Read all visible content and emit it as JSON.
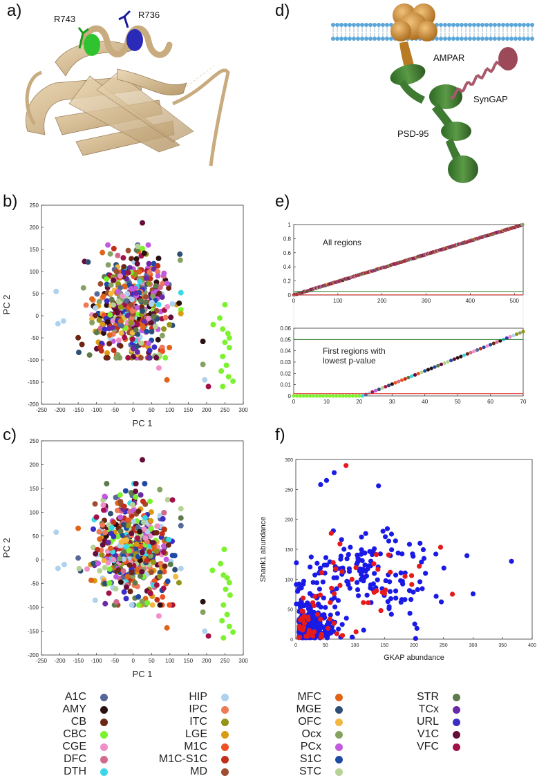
{
  "panels": {
    "a": {
      "label": "a)",
      "res1": "R743",
      "res2": "R736",
      "colors": {
        "ribbon": "#d8bf96",
        "res1": "#2fc42f",
        "res2": "#2a2ab8"
      }
    },
    "d": {
      "label": "d)",
      "ampar": "AMPAR",
      "syngap": "SynGAP",
      "psd95": "PSD-95",
      "colors": {
        "ampar": "#d1902e",
        "psd95": "#3e7a31",
        "syngap": "#9c4a5a",
        "membrane": "#5aa6d8"
      }
    },
    "b": {
      "label": "b)"
    },
    "c": {
      "label": "c)"
    },
    "e": {
      "label": "e)"
    },
    "f": {
      "label": "f)"
    }
  },
  "chart_data": [
    {
      "id": "b",
      "type": "scatter",
      "title": "",
      "xlabel": "PC 1",
      "ylabel": "PC 2",
      "xlim": [
        -250,
        300
      ],
      "ylim": [
        -200,
        250
      ],
      "xticks": [
        -250,
        -200,
        -150,
        -100,
        -50,
        0,
        50,
        100,
        150,
        200,
        250,
        300
      ],
      "yticks": [
        -200,
        -150,
        -100,
        -50,
        0,
        50,
        100,
        150,
        200,
        250
      ],
      "point_count": 520,
      "seed": 11,
      "cluster": {
        "x_mean": 0,
        "x_sd": 55,
        "y_mean": 20,
        "y_sd": 60
      },
      "cb_points": [
        [
          218,
          -20
        ],
        [
          236,
          -5
        ],
        [
          244,
          -30
        ],
        [
          258,
          -40
        ],
        [
          250,
          -60
        ],
        [
          262,
          -72
        ],
        [
          244,
          -92
        ],
        [
          254,
          -112
        ],
        [
          240,
          -125
        ],
        [
          260,
          -138
        ],
        [
          244,
          -160
        ],
        [
          272,
          -148
        ],
        [
          250,
          25
        ],
        [
          262,
          -50
        ]
      ],
      "outliers": [
        [
          25,
          210
        ],
        [
          92,
          -145
        ],
        [
          190,
          -58
        ],
        [
          190,
          -110
        ],
        [
          205,
          -160
        ],
        [
          195,
          -145
        ],
        [
          -210,
          55
        ],
        [
          -205,
          -18
        ],
        [
          -190,
          -12
        ],
        [
          70,
          -118
        ],
        [
          80,
          -80
        ]
      ]
    },
    {
      "id": "c",
      "type": "scatter",
      "title": "",
      "xlabel": "PC 1",
      "ylabel": "PC 2",
      "xlim": [
        -250,
        300
      ],
      "ylim": [
        -200,
        250
      ],
      "xticks": [
        -250,
        -200,
        -150,
        -100,
        -50,
        0,
        50,
        100,
        150,
        200,
        250,
        300
      ],
      "yticks": [
        -200,
        -150,
        -100,
        -50,
        0,
        50,
        100,
        150,
        200,
        250
      ],
      "point_count": 520,
      "seed": 29,
      "cluster": {
        "x_mean": 0,
        "x_sd": 55,
        "y_mean": 20,
        "y_sd": 60
      },
      "cb_points": [
        [
          216,
          -22
        ],
        [
          238,
          -8
        ],
        [
          246,
          -32
        ],
        [
          256,
          -38
        ],
        [
          252,
          -62
        ],
        [
          264,
          -74
        ],
        [
          246,
          -95
        ],
        [
          256,
          -115
        ],
        [
          242,
          -128
        ],
        [
          262,
          -140
        ],
        [
          246,
          -164
        ],
        [
          272,
          -152
        ],
        [
          248,
          22
        ],
        [
          262,
          -48
        ]
      ],
      "outliers": [
        [
          25,
          210
        ],
        [
          92,
          -143
        ],
        [
          190,
          -88
        ],
        [
          190,
          -110
        ],
        [
          205,
          -160
        ],
        [
          195,
          -150
        ],
        [
          -210,
          58
        ],
        [
          -205,
          -18
        ],
        [
          -188,
          -10
        ],
        [
          70,
          -118
        ],
        [
          80,
          -78
        ]
      ]
    },
    {
      "id": "e_top",
      "type": "scatter",
      "title": "",
      "annotation": "All regions",
      "xlim": [
        0,
        520
      ],
      "ylim": [
        0,
        1
      ],
      "xticks": [
        0,
        100,
        200,
        300,
        400,
        500
      ],
      "yticks": [
        0,
        0.2,
        0.4,
        0.6,
        0.8,
        1
      ],
      "n_points": 520,
      "threshold_green": 0.05,
      "threshold_red": 0.002
    },
    {
      "id": "e_bottom",
      "type": "scatter",
      "title": "",
      "annotation_line1": "First regions with",
      "annotation_line2": "lowest p-value",
      "xlim": [
        0,
        70
      ],
      "ylim": [
        0,
        0.06
      ],
      "xticks": [
        0,
        10,
        20,
        30,
        40,
        50,
        60,
        70
      ],
      "yticks": [
        0,
        0.01,
        0.02,
        0.03,
        0.04,
        0.05,
        0.06
      ],
      "n_points": 70,
      "zero_until": 21,
      "end_value": 0.057,
      "threshold_green": 0.05,
      "threshold_red": 0.002
    },
    {
      "id": "f",
      "type": "scatter",
      "title": "",
      "xlabel": "GKAP abundance",
      "ylabel": "Shank1 abundance",
      "xlim": [
        0,
        400
      ],
      "ylim": [
        0,
        300
      ],
      "xticks": [
        0,
        50,
        100,
        150,
        200,
        250,
        300,
        350,
        400
      ],
      "yticks": [
        0,
        50,
        100,
        150,
        200,
        250,
        300
      ],
      "series": [
        {
          "name": "blue",
          "color": "#1a1ae6",
          "count": 420,
          "seed": 5
        },
        {
          "name": "red",
          "color": "#e61a1a",
          "count": 70,
          "seed": 17
        }
      ],
      "fixed_points": [
        [
          85,
          290,
          "red"
        ],
        [
          65,
          278,
          "blue"
        ],
        [
          52,
          265,
          "blue"
        ],
        [
          42,
          258,
          "blue"
        ],
        [
          140,
          256,
          "blue"
        ],
        [
          365,
          130,
          "blue"
        ],
        [
          205,
          18,
          "blue"
        ],
        [
          265,
          75,
          "red"
        ]
      ]
    }
  ],
  "legend": {
    "items": [
      {
        "label": "A1C",
        "color": "#56679a"
      },
      {
        "label": "AMY",
        "color": "#2a1010"
      },
      {
        "label": "CB",
        "color": "#6e2514"
      },
      {
        "label": "CBC",
        "color": "#7cf22e"
      },
      {
        "label": "CGE",
        "color": "#f08ec8"
      },
      {
        "label": "DFC",
        "color": "#d46a8a"
      },
      {
        "label": "DTH",
        "color": "#3ad8e6"
      },
      {
        "label": "HIP",
        "color": "#aed2ee"
      },
      {
        "label": "IPC",
        "color": "#ee7a56"
      },
      {
        "label": "ITC",
        "color": "#949418"
      },
      {
        "label": "LGE",
        "color": "#da9a12"
      },
      {
        "label": "M1C",
        "color": "#ee5222"
      },
      {
        "label": "M1C-S1C",
        "color": "#c22e1a"
      },
      {
        "label": "MD",
        "color": "#9e4e2e"
      },
      {
        "label": "MFC",
        "color": "#e06418"
      },
      {
        "label": "MGE",
        "color": "#2e4e76"
      },
      {
        "label": "OFC",
        "color": "#f2b842"
      },
      {
        "label": "Ocx",
        "color": "#86a262"
      },
      {
        "label": "PCx",
        "color": "#c25ade"
      },
      {
        "label": "S1C",
        "color": "#1e4aa6"
      },
      {
        "label": "STC",
        "color": "#b6d294"
      },
      {
        "label": "STR",
        "color": "#5e7a4a"
      },
      {
        "label": "TCx",
        "color": "#6a2aa6"
      },
      {
        "label": "URL",
        "color": "#3a2ec6"
      },
      {
        "label": "V1C",
        "color": "#660c3a"
      },
      {
        "label": "VFC",
        "color": "#a21248"
      }
    ]
  }
}
